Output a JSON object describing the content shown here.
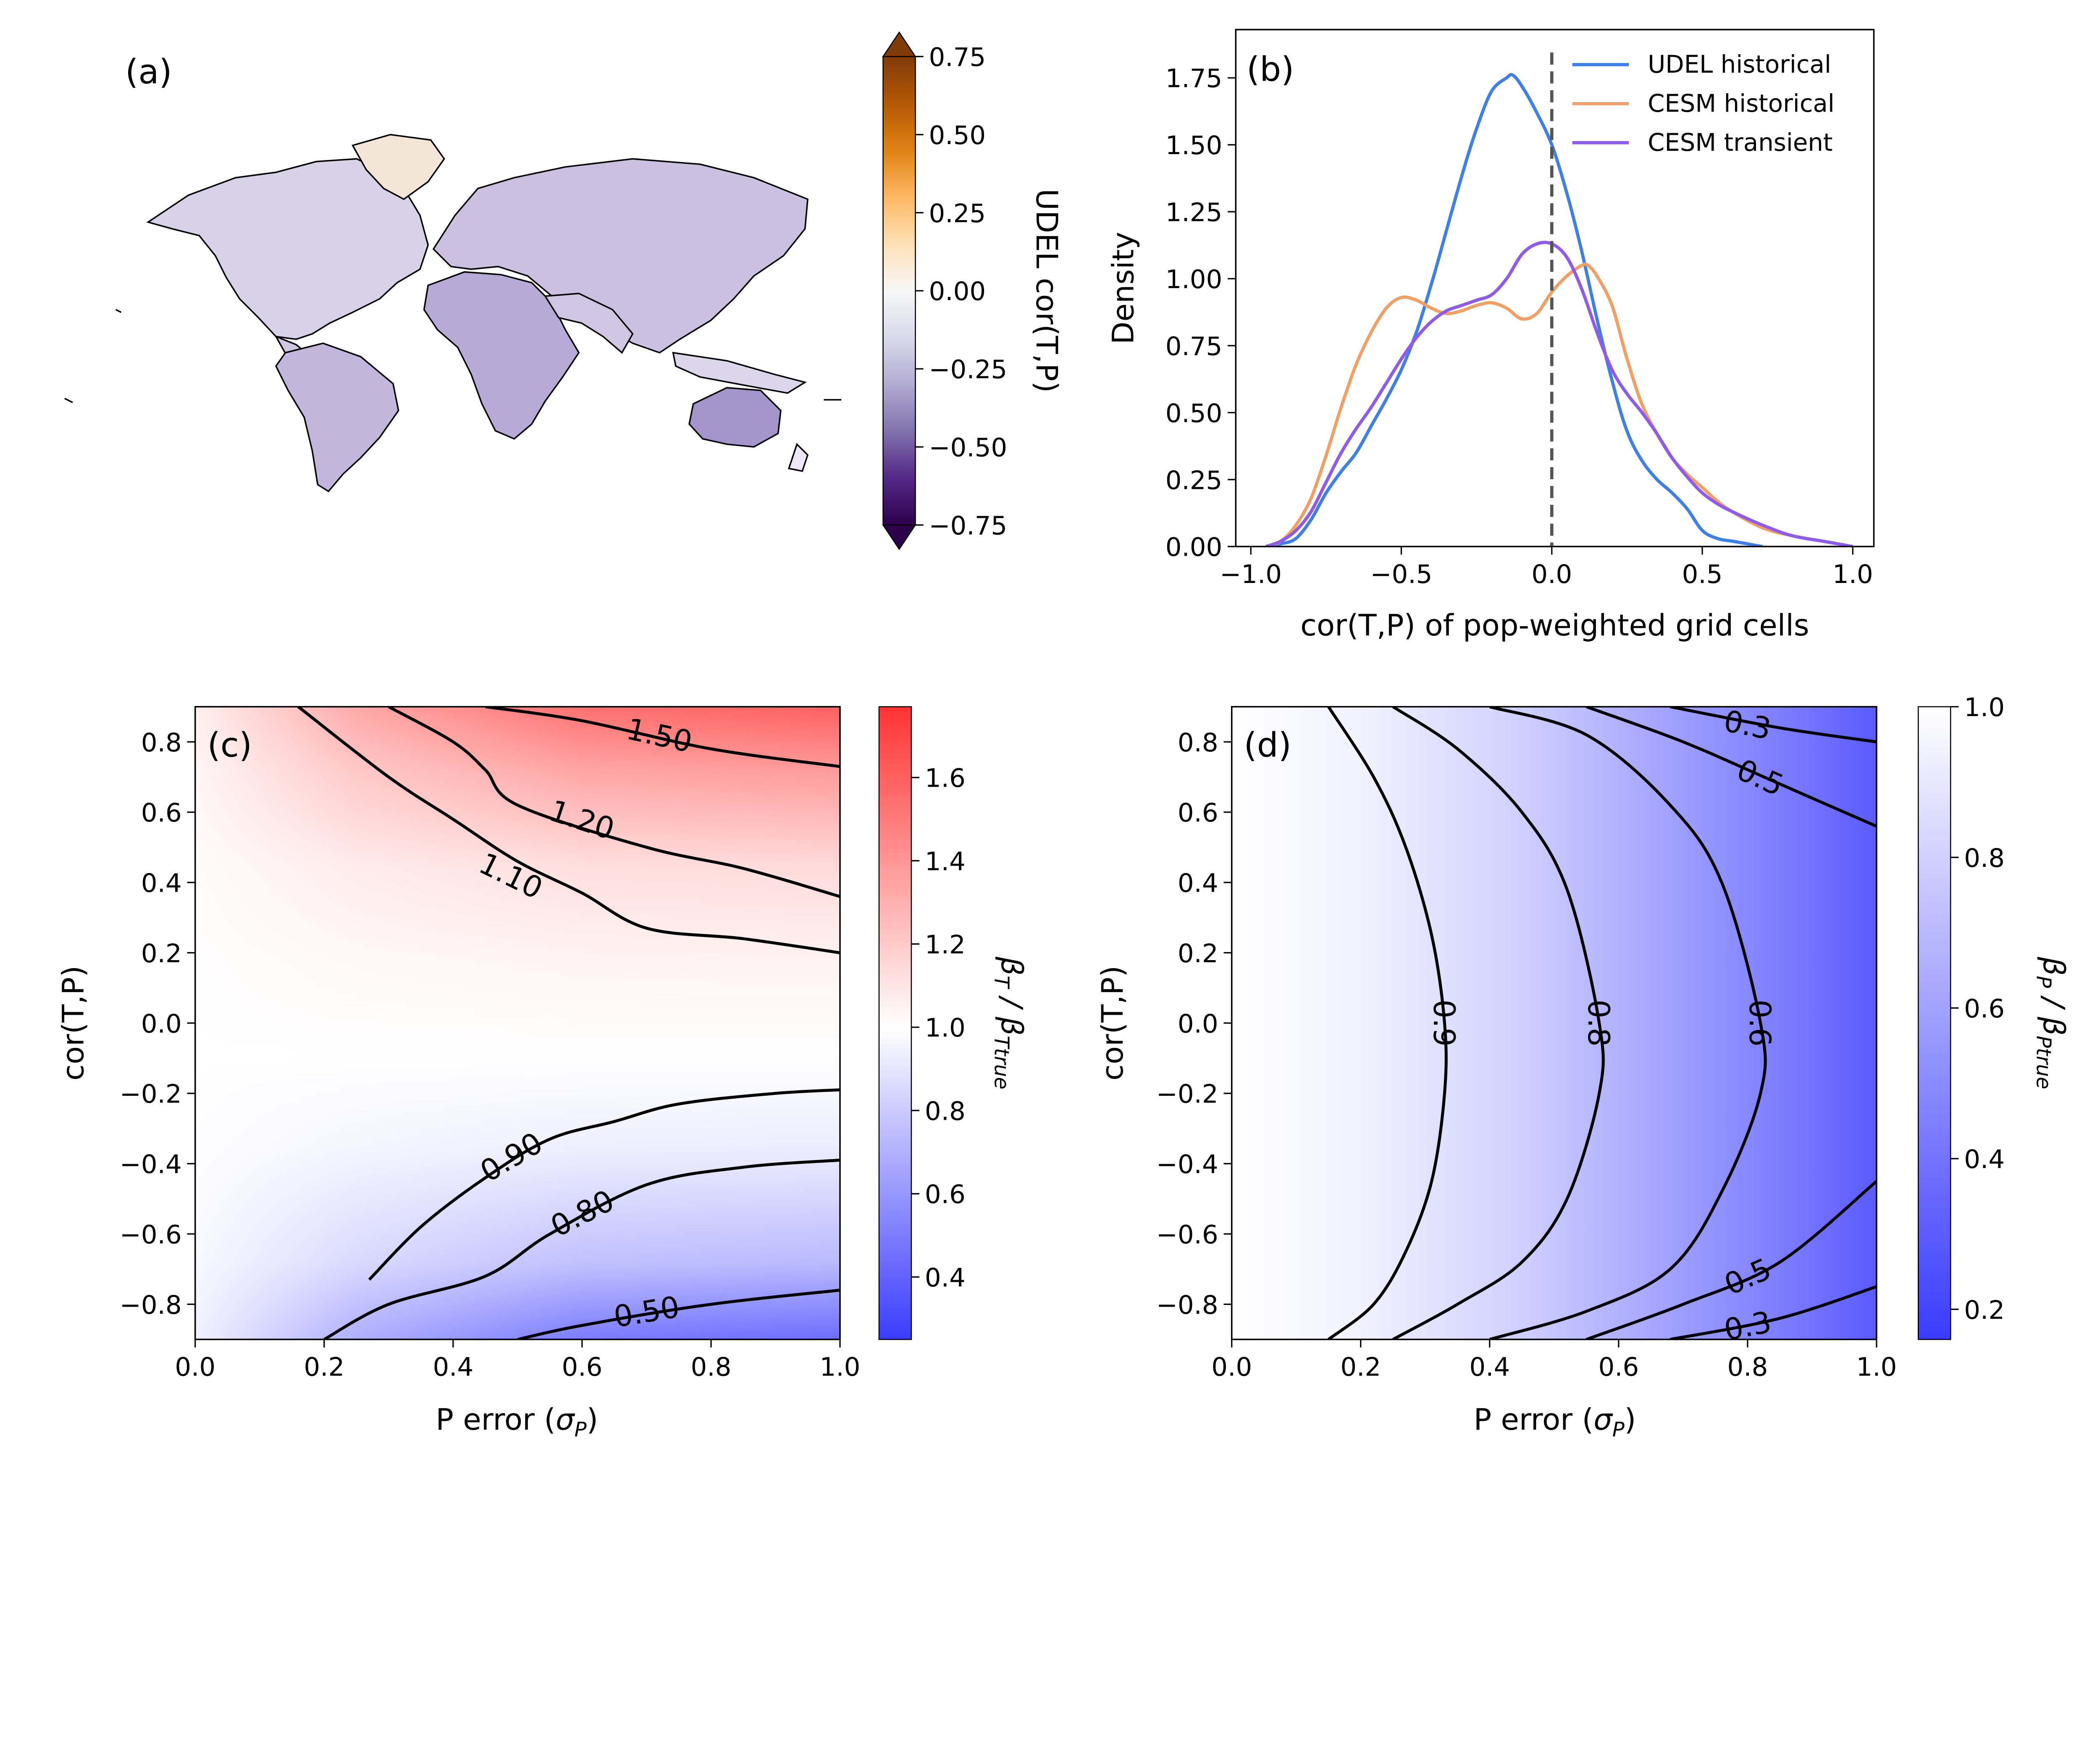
{
  "figure": {
    "background": "#ffffff"
  },
  "chart_data": [
    {
      "id": "a",
      "type": "map",
      "panel_label": "(a)",
      "colorbar": {
        "label": "UDEL cor(T,P)",
        "ticks": [
          "0.75",
          "0.50",
          "0.25",
          "0.00",
          "−0.25",
          "−0.50",
          "−0.75"
        ],
        "tick_values": [
          0.75,
          0.5,
          0.25,
          0.0,
          -0.25,
          -0.5,
          -0.75
        ],
        "range": [
          -0.75,
          0.75
        ],
        "colors": [
          "#2d004b",
          "#542788",
          "#8073ac",
          "#b2abd2",
          "#d8daeb",
          "#f7f7f7",
          "#fee0b6",
          "#fdb863",
          "#e08214",
          "#b35806",
          "#7f3b08"
        ],
        "extend": "both"
      }
    },
    {
      "id": "b",
      "type": "line",
      "panel_label": "(b)",
      "xlabel": "cor(T,P) of pop-weighted grid cells",
      "ylabel": "Density",
      "xlim": [
        -1.05,
        1.07
      ],
      "ylim": [
        0.0,
        1.93
      ],
      "x_ticks": [
        "−1.0",
        "−0.5",
        "0.0",
        "0.5",
        "1.0"
      ],
      "x_tick_values": [
        -1.0,
        -0.5,
        0.0,
        0.5,
        1.0
      ],
      "y_ticks": [
        "0.00",
        "0.25",
        "0.50",
        "0.75",
        "1.00",
        "1.25",
        "1.50",
        "1.75"
      ],
      "y_tick_values": [
        0.0,
        0.25,
        0.5,
        0.75,
        1.0,
        1.25,
        1.5,
        1.75
      ],
      "vline": {
        "x": 0.0,
        "style": "dashed",
        "color": "#555555"
      },
      "legend_position": "top-right",
      "series": [
        {
          "name": "UDEL historical",
          "color": "#3f7fe6",
          "x": [
            -0.95,
            -0.9,
            -0.85,
            -0.8,
            -0.75,
            -0.7,
            -0.65,
            -0.6,
            -0.55,
            -0.5,
            -0.45,
            -0.4,
            -0.35,
            -0.3,
            -0.25,
            -0.2,
            -0.15,
            -0.13,
            -0.1,
            -0.05,
            0.0,
            0.05,
            0.1,
            0.15,
            0.2,
            0.25,
            0.3,
            0.35,
            0.4,
            0.45,
            0.5,
            0.55,
            0.6,
            0.65,
            0.7
          ],
          "y": [
            0.0,
            0.01,
            0.03,
            0.1,
            0.2,
            0.28,
            0.35,
            0.45,
            0.55,
            0.66,
            0.8,
            0.98,
            1.18,
            1.38,
            1.56,
            1.7,
            1.75,
            1.76,
            1.72,
            1.62,
            1.5,
            1.32,
            1.1,
            0.85,
            0.62,
            0.43,
            0.32,
            0.25,
            0.2,
            0.14,
            0.06,
            0.03,
            0.02,
            0.01,
            0.0
          ]
        },
        {
          "name": "CESM historical",
          "color": "#f0a066",
          "x": [
            -0.95,
            -0.9,
            -0.85,
            -0.8,
            -0.75,
            -0.7,
            -0.65,
            -0.6,
            -0.55,
            -0.5,
            -0.45,
            -0.4,
            -0.35,
            -0.3,
            -0.25,
            -0.2,
            -0.15,
            -0.1,
            -0.05,
            0.0,
            0.05,
            0.1,
            0.12,
            0.15,
            0.2,
            0.25,
            0.3,
            0.35,
            0.4,
            0.45,
            0.5,
            0.55,
            0.6,
            0.7,
            0.8,
            0.9,
            1.0
          ],
          "y": [
            0.0,
            0.02,
            0.08,
            0.18,
            0.34,
            0.52,
            0.68,
            0.8,
            0.89,
            0.93,
            0.92,
            0.89,
            0.87,
            0.88,
            0.9,
            0.91,
            0.89,
            0.85,
            0.87,
            0.95,
            1.01,
            1.05,
            1.05,
            1.01,
            0.9,
            0.7,
            0.53,
            0.42,
            0.33,
            0.27,
            0.22,
            0.17,
            0.13,
            0.07,
            0.04,
            0.02,
            0.0
          ]
        },
        {
          "name": "CESM transient",
          "color": "#8e5ce6",
          "x": [
            -0.95,
            -0.9,
            -0.85,
            -0.8,
            -0.75,
            -0.7,
            -0.65,
            -0.6,
            -0.55,
            -0.5,
            -0.45,
            -0.4,
            -0.35,
            -0.3,
            -0.25,
            -0.2,
            -0.15,
            -0.1,
            -0.05,
            0.0,
            0.05,
            0.1,
            0.15,
            0.2,
            0.25,
            0.3,
            0.35,
            0.4,
            0.45,
            0.5,
            0.55,
            0.6,
            0.7,
            0.8,
            0.9,
            1.0
          ],
          "y": [
            0.0,
            0.02,
            0.06,
            0.13,
            0.24,
            0.35,
            0.44,
            0.52,
            0.61,
            0.7,
            0.78,
            0.84,
            0.88,
            0.9,
            0.92,
            0.94,
            1.0,
            1.09,
            1.13,
            1.13,
            1.08,
            0.96,
            0.8,
            0.66,
            0.57,
            0.5,
            0.42,
            0.33,
            0.26,
            0.2,
            0.16,
            0.13,
            0.08,
            0.04,
            0.02,
            0.0
          ]
        }
      ]
    },
    {
      "id": "c",
      "type": "contour",
      "panel_label": "(c)",
      "xlabel": "P error (σP)",
      "ylabel": "cor(T,P)",
      "xlim": [
        0.0,
        1.0
      ],
      "ylim": [
        -0.9,
        0.9
      ],
      "x_ticks": [
        "0.0",
        "0.2",
        "0.4",
        "0.6",
        "0.8",
        "1.0"
      ],
      "x_tick_values": [
        0.0,
        0.2,
        0.4,
        0.6,
        0.8,
        1.0
      ],
      "y_ticks": [
        "0.8",
        "0.6",
        "0.4",
        "0.2",
        "0.0",
        "−0.2",
        "−0.4",
        "−0.6",
        "−0.8"
      ],
      "y_tick_values": [
        0.8,
        0.6,
        0.4,
        0.2,
        0.0,
        -0.2,
        -0.4,
        -0.6,
        -0.8
      ],
      "colorbar": {
        "label": "βT / βTtrue",
        "ticks": [
          "1.6",
          "1.4",
          "1.2",
          "1.0",
          "0.8",
          "0.6",
          "0.4"
        ],
        "tick_values": [
          1.6,
          1.4,
          1.2,
          1.0,
          0.8,
          0.6,
          0.4
        ],
        "range": [
          0.25,
          1.77
        ],
        "low_color": "#3b3bff",
        "mid_color": "#ffffff",
        "high_color": "#ff3333"
      },
      "contours": [
        {
          "label": "1.50",
          "label_x": 0.72,
          "label_y": 0.82,
          "x": [
            0.45,
            0.6,
            0.8,
            1.0
          ],
          "y": [
            0.9,
            0.86,
            0.78,
            0.73
          ]
        },
        {
          "label": "1.20",
          "label_x": 0.6,
          "label_y": 0.58,
          "x": [
            0.3,
            0.4,
            0.45,
            0.5,
            0.7,
            0.85,
            1.0
          ],
          "y": [
            0.9,
            0.8,
            0.72,
            0.62,
            0.5,
            0.44,
            0.36
          ]
        },
        {
          "label": "1.10",
          "label_x": 0.49,
          "label_y": 0.42,
          "x": [
            0.16,
            0.3,
            0.4,
            0.5,
            0.6,
            0.7,
            0.85,
            1.0
          ],
          "y": [
            0.9,
            0.7,
            0.58,
            0.46,
            0.37,
            0.27,
            0.24,
            0.2
          ]
        },
        {
          "label": "0.90",
          "label_x": 0.49,
          "label_y": -0.38,
          "x": [
            0.27,
            0.35,
            0.45,
            0.55,
            0.65,
            0.75,
            0.9,
            1.0
          ],
          "y": [
            -0.73,
            -0.58,
            -0.44,
            -0.33,
            -0.28,
            -0.23,
            -0.2,
            -0.19
          ]
        },
        {
          "label": "0.80",
          "label_x": 0.6,
          "label_y": -0.54,
          "x": [
            0.2,
            0.3,
            0.45,
            0.55,
            0.7,
            0.85,
            1.0
          ],
          "y": [
            -0.9,
            -0.8,
            -0.72,
            -0.6,
            -0.46,
            -0.41,
            -0.39
          ]
        },
        {
          "label": "0.50",
          "label_x": 0.7,
          "label_y": -0.82,
          "x": [
            0.5,
            0.6,
            0.8,
            1.0
          ],
          "y": [
            -0.9,
            -0.86,
            -0.8,
            -0.76
          ]
        }
      ]
    },
    {
      "id": "d",
      "type": "contour",
      "panel_label": "(d)",
      "xlabel": "P error (σP)",
      "ylabel": "cor(T,P)",
      "xlim": [
        0.0,
        1.0
      ],
      "ylim": [
        -0.9,
        0.9
      ],
      "x_ticks": [
        "0.0",
        "0.2",
        "0.4",
        "0.6",
        "0.8",
        "1.0"
      ],
      "x_tick_values": [
        0.0,
        0.2,
        0.4,
        0.6,
        0.8,
        1.0
      ],
      "y_ticks": [
        "0.8",
        "0.6",
        "0.4",
        "0.2",
        "0.0",
        "−0.2",
        "−0.4",
        "−0.6",
        "−0.8"
      ],
      "y_tick_values": [
        0.8,
        0.6,
        0.4,
        0.2,
        0.0,
        -0.2,
        -0.4,
        -0.6,
        -0.8
      ],
      "colorbar": {
        "label": "βP / βPtrue",
        "ticks": [
          "1.0",
          "0.8",
          "0.6",
          "0.4",
          "0.2"
        ],
        "tick_values": [
          1.0,
          0.8,
          0.6,
          0.4,
          0.2
        ],
        "range": [
          0.16,
          1.0
        ],
        "low_color": "#3b3bff",
        "high_color": "#ffffff"
      },
      "contours": [
        {
          "label": "0.9",
          "label_x": 0.33,
          "label_y": 0.0,
          "x": [
            0.15,
            0.22,
            0.27,
            0.31,
            0.33,
            0.33,
            0.31,
            0.27,
            0.22,
            0.15
          ],
          "y": [
            0.9,
            0.7,
            0.5,
            0.25,
            0.0,
            -0.2,
            -0.45,
            -0.65,
            -0.8,
            -0.9
          ]
        },
        {
          "label": "0.8",
          "label_x": 0.57,
          "label_y": 0.0,
          "x": [
            0.25,
            0.35,
            0.45,
            0.52,
            0.57,
            0.57,
            0.52,
            0.45,
            0.35,
            0.25
          ],
          "y": [
            0.9,
            0.78,
            0.6,
            0.38,
            0.0,
            -0.2,
            -0.5,
            -0.68,
            -0.8,
            -0.9
          ]
        },
        {
          "label": "0.6",
          "label_x": 0.82,
          "label_y": 0.0,
          "x": [
            0.4,
            0.55,
            0.68,
            0.76,
            0.82,
            0.82,
            0.76,
            0.68,
            0.55,
            0.4
          ],
          "y": [
            0.9,
            0.82,
            0.62,
            0.4,
            0.0,
            -0.2,
            -0.48,
            -0.7,
            -0.82,
            -0.9
          ]
        },
        {
          "label": "0.5",
          "label_x": 0.82,
          "label_y": 0.7,
          "x": [
            0.55,
            0.7,
            0.85,
            1.0
          ],
          "y": [
            0.9,
            0.8,
            0.68,
            0.56
          ]
        },
        {
          "label": "0.3",
          "label_x": 0.8,
          "label_y": 0.85,
          "x": [
            0.68,
            0.85,
            1.0
          ],
          "y": [
            0.9,
            0.84,
            0.8
          ]
        },
        {
          "label": "0.5",
          "label_x": 0.8,
          "label_y": -0.72,
          "x": [
            0.55,
            0.7,
            0.85,
            1.0
          ],
          "y": [
            -0.9,
            -0.8,
            -0.68,
            -0.45
          ]
        },
        {
          "label": "0.3",
          "label_x": 0.8,
          "label_y": -0.86,
          "x": [
            0.68,
            0.85,
            1.0
          ],
          "y": [
            -0.9,
            -0.84,
            -0.75
          ]
        }
      ]
    }
  ]
}
